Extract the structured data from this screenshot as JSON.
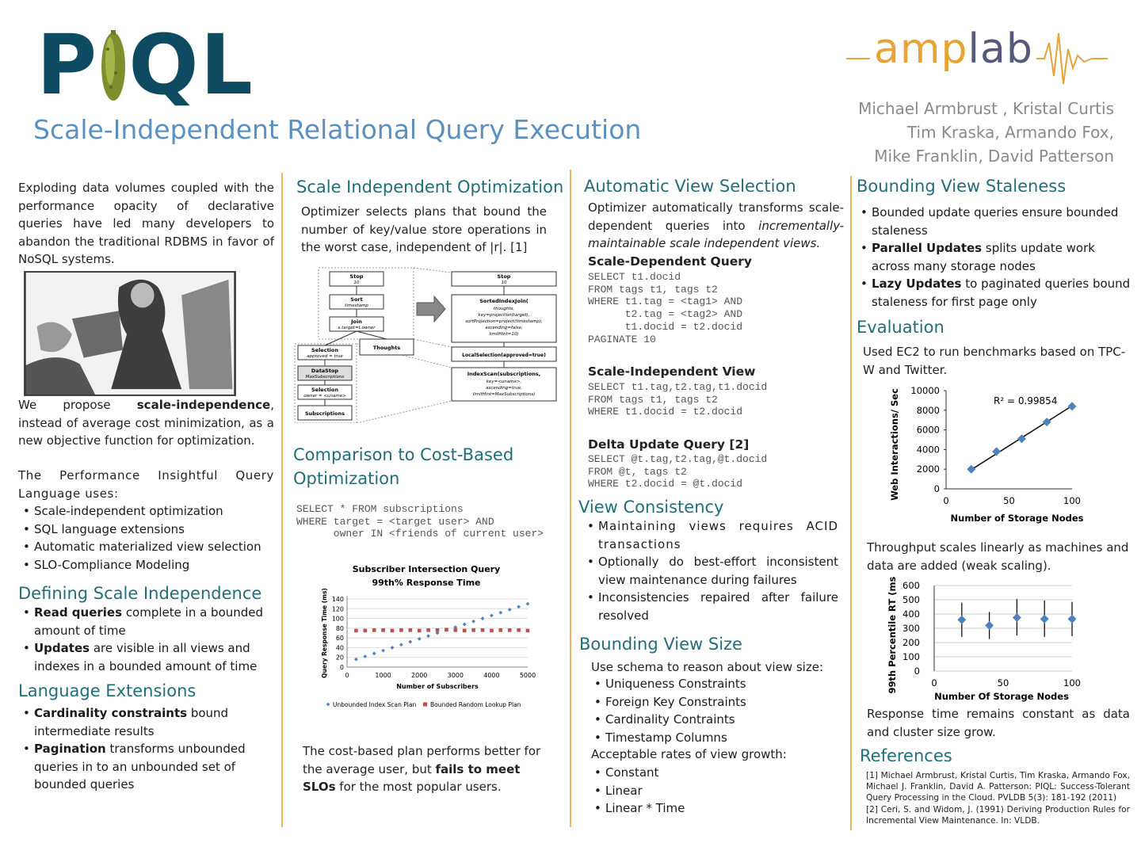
{
  "header": {
    "logo_text_left": "P",
    "logo_text_right": "QL",
    "subtitle": "Scale-Independent Relational Query Execution",
    "amplab_amp": "amp",
    "amplab_lab": "lab",
    "authors": [
      "Michael Armbrust , Kristal Curtis",
      "Tim Kraska, Armando Fox,",
      "Mike Franklin, David Patterson"
    ]
  },
  "col1": {
    "intro": "Exploding data volumes coupled with the performance opacity of declarative queries have led many developers to abandon the traditional RDBMS in favor of NoSQL systems.",
    "propose_pre": "We propose ",
    "propose_bold": "scale-independence",
    "propose_post": ", instead of average cost minimization, as a new objective function for optimization.",
    "piql_intro": "The Performance Insightful Query Language uses:",
    "piql_uses": [
      "Scale-independent optimization",
      "SQL language extensions",
      "Automatic materialized view selection",
      "SLO-Compliance Modeling"
    ],
    "defining_title": "Defining Scale Independence",
    "defining_items": [
      {
        "bold": "Read queries",
        "text": " complete in a bounded amount of time"
      },
      {
        "bold": "Updates",
        "text": " are visible in all views and indexes in a bounded amount of time"
      }
    ],
    "lang_title": "Language Extensions",
    "lang_items": [
      {
        "bold": "Cardinality constraints",
        "text": " bound intermediate results"
      },
      {
        "bold": "Pagination",
        "text": " transforms unbounded queries in to an unbounded set of bounded queries"
      }
    ]
  },
  "col2": {
    "sio_title": "Scale Independent Optimization",
    "sio_text": "Optimizer selects plans that bound the number of key/value store operations  in the worst case, independent of |r|. [1]",
    "plan_left": {
      "stop": "Stop",
      "stop_sub": "10",
      "sort": "Sort",
      "sort_sub": "timestamp",
      "join": "Join",
      "join_sub": "s.target=t.owner",
      "selection1": "Selection",
      "selection1_sub": "approved = true",
      "thoughts": "Thoughts",
      "datastop": "DataStop",
      "datastop_sub": "MaxSubscriptions",
      "selection2": "Selection",
      "selection2_sub": "owner = <uname>",
      "subscriptions": "Subscriptions"
    },
    "plan_right": {
      "stop": "Stop",
      "stop_sub": "10",
      "sij": "SortedIndexJoin(",
      "sij_args": [
        "thoughts,",
        "key=projection(target),",
        "sortProjection=project(timestamp),",
        "ascending=false,",
        "limitHint=10)"
      ],
      "local": "LocalSelection(approved=true)",
      "index": "IndexScan(subscriptions,",
      "index_args": [
        "key=<uname>,",
        "ascending=true,",
        "limitHint=MaxSubscriptions)"
      ]
    },
    "cmp_title_1": "Comparison to Cost-Based",
    "cmp_title_2": "Optimization",
    "cmp_code": "SELECT * FROM subscriptions\nWHERE target = <target user> AND\n      owner IN <friends of current user>",
    "cmp_text_pre": "The cost-based plan performs better for the average user, but ",
    "cmp_text_bold": "fails to meet SLOs",
    "cmp_text_post": " for the most popular users."
  },
  "col3": {
    "avs_title": "Automatic View Selection",
    "avs_text_pre": "Optimizer automatically transforms scale-dependent queries into ",
    "avs_text_italic": "incrementally-maintainable scale independent views.",
    "sdq_title": "Scale-Dependent Query",
    "sdq_code": "SELECT t1.docid\nFROM tags t1, tags t2\nWHERE t1.tag = <tag1> AND\n      t2.tag = <tag2> AND\n      t1.docid = t2.docid\nPAGINATE 10",
    "siv_title": "Scale-Independent View",
    "siv_code": "SELECT t1.tag,t2.tag,t1.docid\nFROM tags t1, tags t2\nWHERE t1.docid = t2.docid",
    "duq_title": "Delta Update Query [2]",
    "duq_code": "SELECT @t.tag,t2.tag,@t.docid\nFROM @t, tags t2\nWHERE t2.docid = @t.docid",
    "vc_title": "View Consistency",
    "vc_items": [
      "Maintaining views requires ACID transactions",
      "Optionally do best-effort inconsistent view maintenance during failures",
      "Inconsistencies repaired after failure resolved"
    ],
    "bvs_title": "Bounding View Size",
    "bvs_intro": "Use schema to reason about view size:",
    "bvs_items": [
      "Uniqueness Constraints",
      "Foreign Key Constraints",
      "Cardinality Contraints",
      "Timestamp Columns"
    ],
    "bvs_rates": "Acceptable rates of view growth:",
    "bvs_rate_items": [
      "Constant",
      "Linear",
      "Linear * Time"
    ]
  },
  "col4": {
    "bvst_title": "Bounding View Staleness",
    "bvst_items": [
      {
        "bold": "",
        "text": "Bounded update queries ensure bounded staleness"
      },
      {
        "bold": "Parallel Updates",
        "text": " splits update work across many storage nodes"
      },
      {
        "bold": "Lazy Updates",
        "text": " to paginated queries bound staleness for first page only"
      }
    ],
    "eval_title": "Evaluation",
    "eval_text": "Used EC2 to run benchmarks based on TPC-W and Twitter.",
    "throughput_text": "Throughput scales linearly as machines and data are added (weak scaling).",
    "response_text": "Response time remains constant as data and cluster size grow.",
    "refs_title": "References",
    "refs": [
      "[1] Michael Armbrust, Kristal Curtis, Tim Kraska, Armando Fox, Michael J. Franklin, David A. Patterson: PIQL: Success-Tolerant Query Processing in the Cloud. PVLDB 5(3): 181-192 (2011)",
      "[2] Ceri, S. and Widom, J. (1991) Deriving Production Rules for Incremental View Maintenance. In: VLDB."
    ]
  },
  "chart_data": [
    {
      "type": "scatter",
      "title": "Subscriber Intersection Query 99th% Response Time",
      "title_lines": [
        "Subscriber Intersection Query",
        "99th% Response Time"
      ],
      "xlabel": "Number of Subscribers",
      "ylabel": "Query Response Time (ms)",
      "xlim": [
        0,
        5000
      ],
      "ylim": [
        0,
        140
      ],
      "xticks": [
        0,
        1000,
        2000,
        3000,
        4000,
        5000
      ],
      "yticks": [
        0,
        20,
        40,
        60,
        80,
        100,
        120,
        140
      ],
      "legend_position": "bottom",
      "series": [
        {
          "name": "Unbounded Index Scan Plan",
          "color": "#4f81bd",
          "marker": "diamond",
          "x": [
            250,
            500,
            750,
            1000,
            1250,
            1500,
            1750,
            2000,
            2250,
            2500,
            2750,
            3000,
            3250,
            3500,
            3750,
            4000,
            4250,
            4500,
            4750,
            5000
          ],
          "y": [
            16,
            22,
            28,
            34,
            40,
            46,
            52,
            58,
            64,
            70,
            76,
            82,
            88,
            94,
            100,
            106,
            112,
            118,
            124,
            130
          ]
        },
        {
          "name": "Bounded Random Lookup Plan",
          "color": "#c0504d",
          "marker": "square",
          "x": [
            250,
            500,
            750,
            1000,
            1250,
            1500,
            1750,
            2000,
            2250,
            2500,
            2750,
            3000,
            3250,
            3500,
            3750,
            4000,
            4250,
            4500,
            4750,
            5000
          ],
          "y": [
            75,
            75,
            76,
            76,
            75,
            76,
            76,
            75,
            76,
            76,
            77,
            76,
            75,
            76,
            76,
            75,
            76,
            76,
            76,
            75
          ]
        }
      ]
    },
    {
      "type": "scatter",
      "xlabel": "Number of Storage Nodes",
      "ylabel": "Web Interactions/ Sec",
      "xlim": [
        0,
        100
      ],
      "ylim": [
        0,
        10000
      ],
      "xticks": [
        0,
        50,
        100
      ],
      "yticks": [
        0,
        2000,
        4000,
        6000,
        8000,
        10000
      ],
      "annotation": "R² = 0.99854",
      "series": [
        {
          "color": "#4f81bd",
          "marker": "diamond",
          "x": [
            20,
            40,
            60,
            80,
            100
          ],
          "y": [
            2000,
            3800,
            5100,
            6800,
            8400
          ]
        }
      ],
      "trendline": {
        "x": [
          20,
          100
        ],
        "y": [
          1950,
          8450
        ]
      }
    },
    {
      "type": "scatter",
      "xlabel": "Number Of Storage Nodes",
      "ylabel": "99th Percentile RT (ms)",
      "xlim": [
        0,
        100
      ],
      "ylim": [
        0,
        600
      ],
      "xticks": [
        0,
        50,
        100
      ],
      "yticks": [
        0,
        100,
        200,
        300,
        400,
        500,
        600
      ],
      "series": [
        {
          "color": "#4f81bd",
          "marker": "diamond",
          "x": [
            20,
            40,
            60,
            80,
            100
          ],
          "y": [
            360,
            320,
            375,
            365,
            365
          ],
          "err_low": [
            240,
            225,
            250,
            240,
            245
          ],
          "err_high": [
            480,
            415,
            505,
            495,
            485
          ]
        }
      ]
    }
  ]
}
